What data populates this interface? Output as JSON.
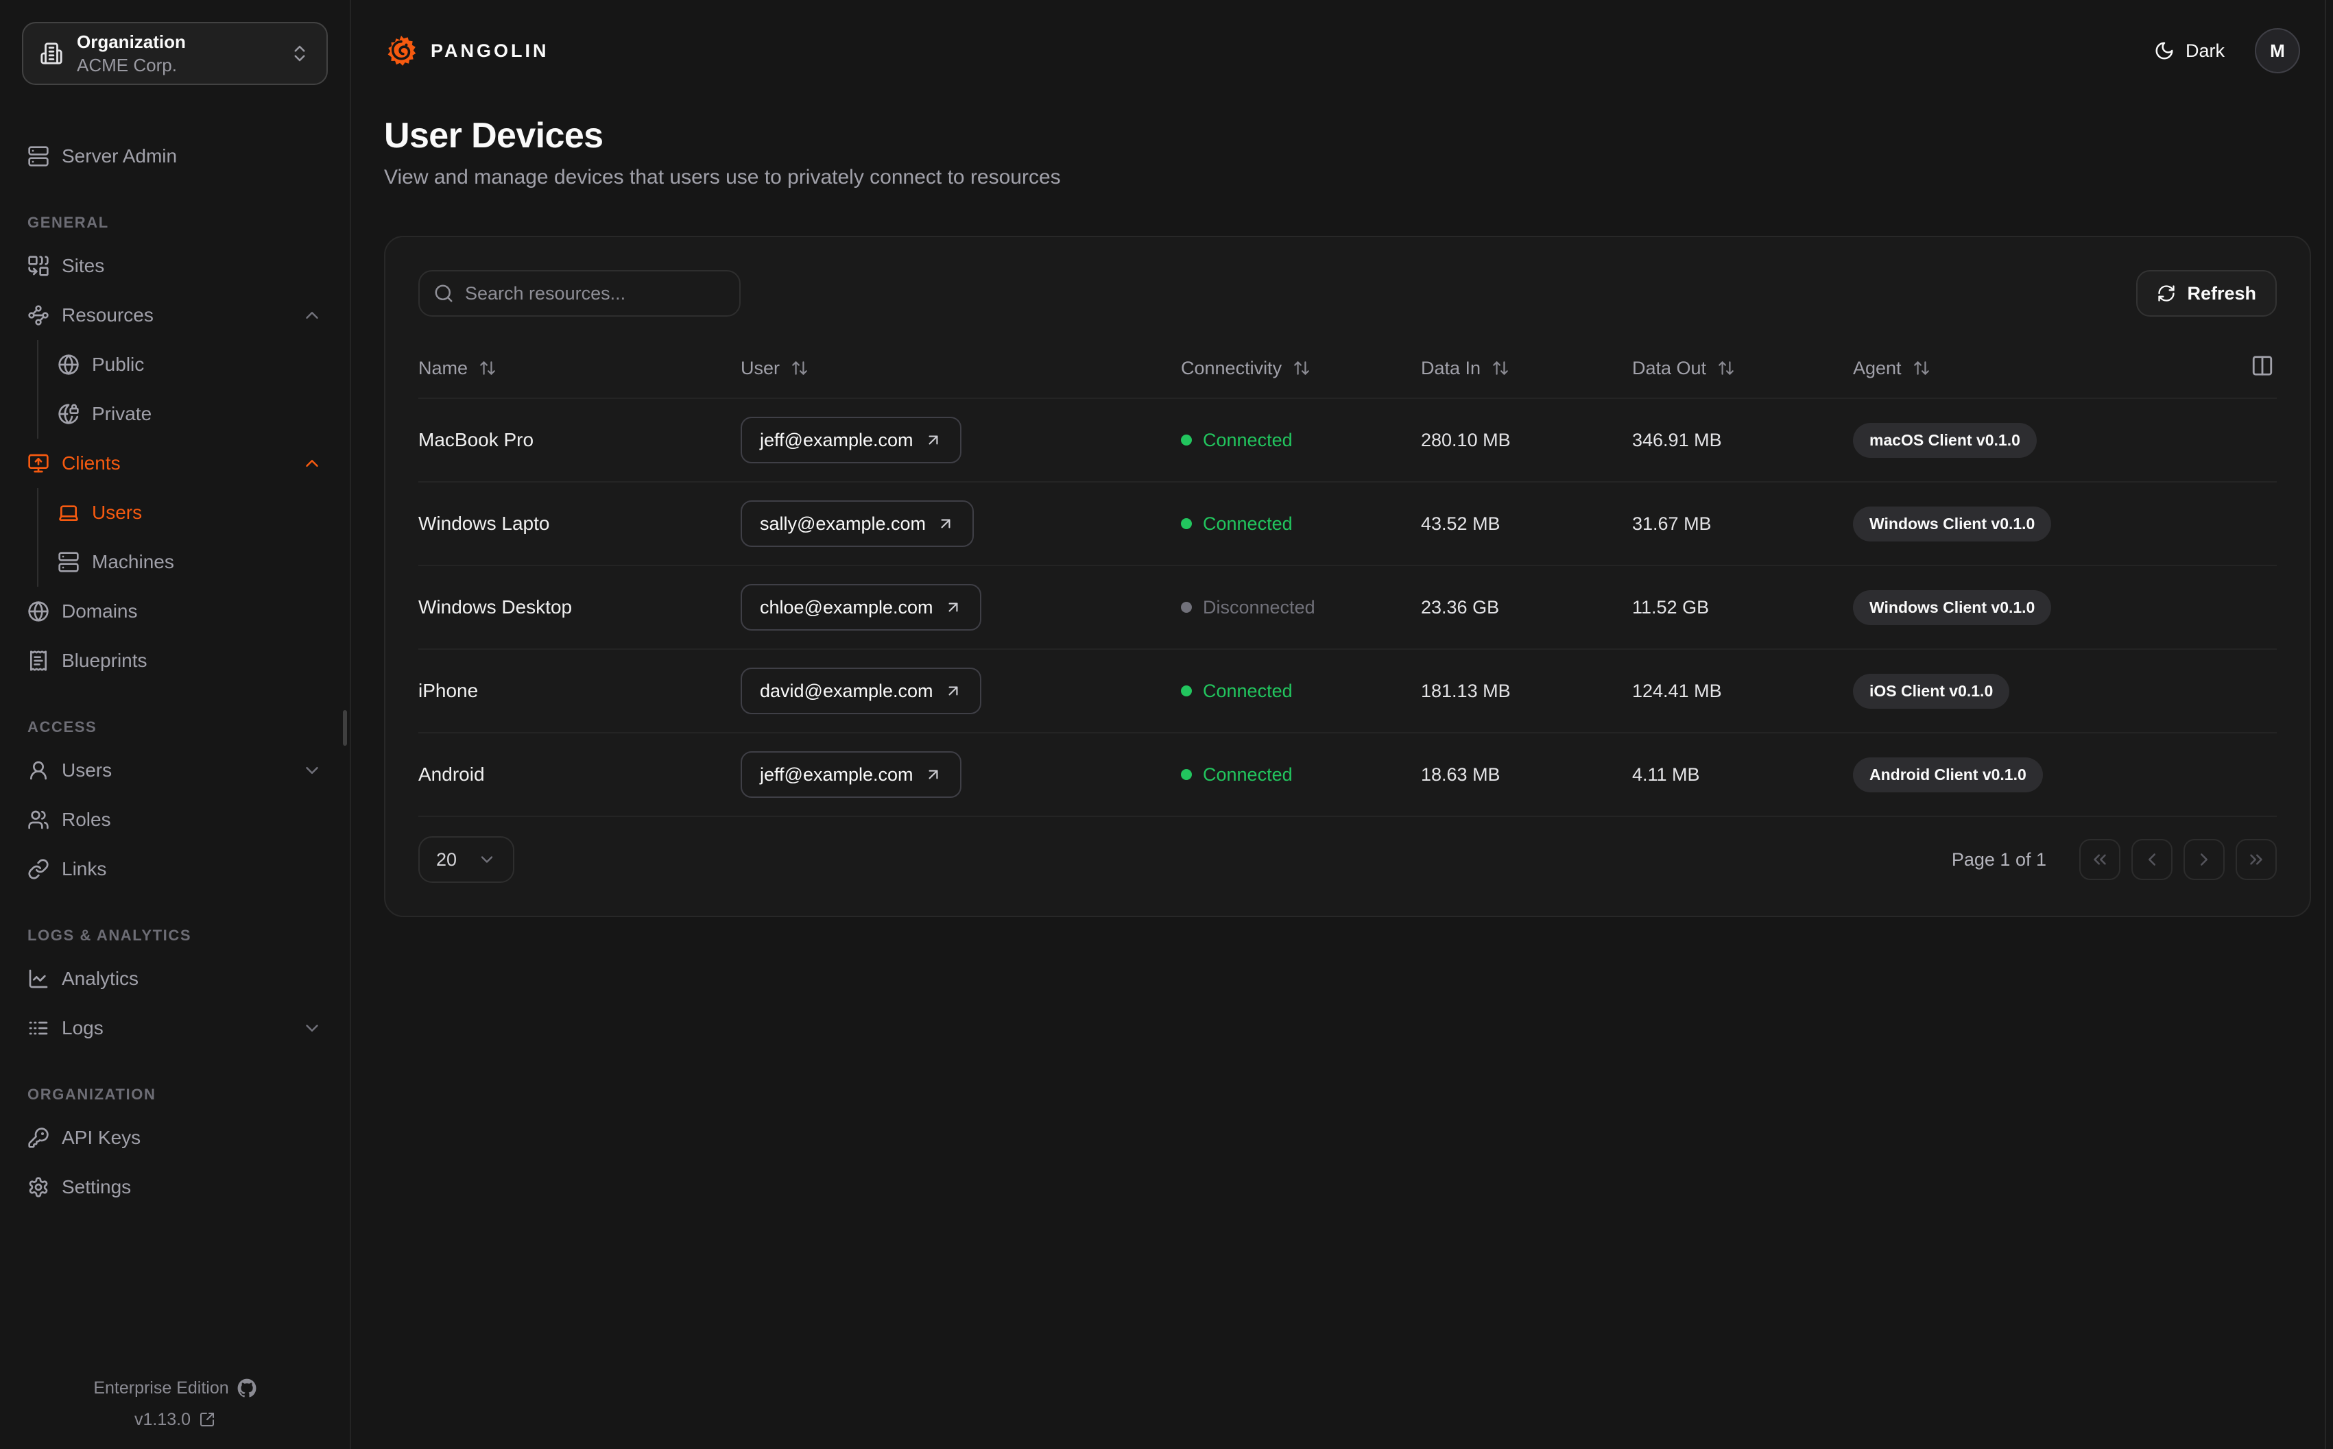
{
  "org_selector": {
    "label": "Organization",
    "value": "ACME Corp.",
    "icon": "building"
  },
  "sidebar": {
    "server_admin": {
      "label": "Server Admin",
      "icon": "server"
    },
    "sections": [
      {
        "heading": "GENERAL",
        "items": [
          {
            "label": "Sites",
            "icon": "combine"
          },
          {
            "label": "Resources",
            "icon": "waypoints",
            "chevron": "up"
          },
          {
            "label": "Public",
            "icon": "globe",
            "sub": true
          },
          {
            "label": "Private",
            "icon": "globe-lock",
            "sub": true
          },
          {
            "label": "Clients",
            "icon": "monitor-up",
            "chevron": "up",
            "active": true
          },
          {
            "label": "Users",
            "icon": "laptop",
            "sub": true,
            "active": true
          },
          {
            "label": "Machines",
            "icon": "server",
            "sub": true
          },
          {
            "label": "Domains",
            "icon": "globe"
          },
          {
            "label": "Blueprints",
            "icon": "receipt-text"
          }
        ]
      },
      {
        "heading": "ACCESS",
        "items": [
          {
            "label": "Users",
            "icon": "user",
            "chevron": "down"
          },
          {
            "label": "Roles",
            "icon": "users"
          },
          {
            "label": "Links",
            "icon": "link"
          }
        ]
      },
      {
        "heading": "LOGS & ANALYTICS",
        "items": [
          {
            "label": "Analytics",
            "icon": "chart-line"
          },
          {
            "label": "Logs",
            "icon": "logs",
            "chevron": "down"
          }
        ]
      },
      {
        "heading": "ORGANIZATION",
        "items": [
          {
            "label": "API Keys",
            "icon": "key-round"
          },
          {
            "label": "Settings",
            "icon": "settings"
          }
        ]
      }
    ],
    "footer": {
      "edition": "Enterprise Edition",
      "edition_icon": "github",
      "version": "v1.13.0",
      "version_icon": "external-link"
    }
  },
  "topbar": {
    "brand": "PANGOLIN",
    "brand_icon": "pangolin-logo",
    "theme_label": "Dark",
    "theme_icon": "moon",
    "avatar_initial": "M"
  },
  "page": {
    "title": "User Devices",
    "subtitle": "View and manage devices that users use to privately connect to resources"
  },
  "toolbar": {
    "search_placeholder": "Search resources...",
    "refresh_label": "Refresh",
    "refresh_icon": "refresh"
  },
  "table": {
    "columns": [
      {
        "label": "Name",
        "sortable": true
      },
      {
        "label": "User",
        "sortable": true
      },
      {
        "label": "Connectivity",
        "sortable": true
      },
      {
        "label": "Data In",
        "sortable": true
      },
      {
        "label": "Data Out",
        "sortable": true
      },
      {
        "label": "Agent",
        "sortable": true
      }
    ],
    "columns_icon": "columns-2",
    "rows": [
      {
        "name": "MacBook Pro",
        "user": "jeff@example.com",
        "connectivity": "Connected",
        "connected": true,
        "data_in": "280.10 MB",
        "data_out": "346.91 MB",
        "agent": "macOS Client v0.1.0"
      },
      {
        "name": "Windows Lapto",
        "user": "sally@example.com",
        "connectivity": "Connected",
        "connected": true,
        "data_in": "43.52 MB",
        "data_out": "31.67 MB",
        "agent": "Windows Client v0.1.0"
      },
      {
        "name": "Windows Desktop",
        "user": "chloe@example.com",
        "connectivity": "Disconnected",
        "connected": false,
        "data_in": "23.36 GB",
        "data_out": "11.52 GB",
        "agent": "Windows Client v0.1.0"
      },
      {
        "name": "iPhone",
        "user": "david@example.com",
        "connectivity": "Connected",
        "connected": true,
        "data_in": "181.13 MB",
        "data_out": "124.41 MB",
        "agent": "iOS Client v0.1.0"
      },
      {
        "name": "Android",
        "user": "jeff@example.com",
        "connectivity": "Connected",
        "connected": true,
        "data_in": "18.63 MB",
        "data_out": "4.11 MB",
        "agent": "Android Client v0.1.0"
      }
    ]
  },
  "pagination": {
    "page_size": "20",
    "page_text": "Page 1 of 1",
    "buttons": [
      "chevrons-left",
      "chevron-left",
      "chevron-right",
      "chevrons-right"
    ]
  },
  "colors": {
    "accent": "#f65a10",
    "connected": "#22c55e",
    "disconnected": "#71717a"
  }
}
